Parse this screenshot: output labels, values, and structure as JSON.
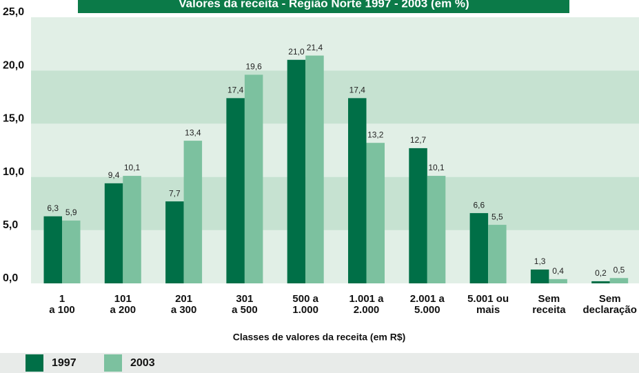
{
  "chart_data": {
    "type": "bar",
    "title": "Valores da receita - Região Norte 1997 - 2003 (em %)",
    "x_label": "Classes de valores da receita (em R$)",
    "categories": [
      [
        "1",
        "a 100"
      ],
      [
        "101",
        "a 200"
      ],
      [
        "201",
        "a 300"
      ],
      [
        "301",
        "a 500"
      ],
      [
        "500 a",
        "1.000"
      ],
      [
        "1.001 a",
        "2.000"
      ],
      [
        "2.001 a",
        "5.000"
      ],
      [
        "5.001 ou",
        "mais"
      ],
      [
        "Sem",
        "receita"
      ],
      [
        "Sem",
        "declaração"
      ]
    ],
    "series": [
      {
        "name": "1997",
        "color": "#006f47",
        "values": [
          6.3,
          9.4,
          7.7,
          17.4,
          21.0,
          17.4,
          12.7,
          6.6,
          1.3,
          0.2
        ],
        "value_labels": [
          "6,3",
          "9,4",
          "7,7",
          "17,4",
          "21,0",
          "17,4",
          "12,7",
          "6,6",
          "1,3",
          "0,2"
        ]
      },
      {
        "name": "2003",
        "color": "#7cc19f",
        "values": [
          5.9,
          10.1,
          13.4,
          19.6,
          21.4,
          13.2,
          10.1,
          5.5,
          0.4,
          0.5
        ],
        "value_labels": [
          "5,9",
          "10,1",
          "13,4",
          "19,6",
          "21,4",
          "13,2",
          "10,1",
          "5,5",
          "0,4",
          "0,5"
        ]
      }
    ],
    "ylim": [
      0,
      25
    ],
    "yticks": [
      {
        "value": 0,
        "label": "0,0"
      },
      {
        "value": 5,
        "label": "5,0"
      },
      {
        "value": 10,
        "label": "10,0"
      },
      {
        "value": 15,
        "label": "15,0"
      },
      {
        "value": 20,
        "label": "20,0"
      },
      {
        "value": 25,
        "label": "25,0"
      }
    ],
    "legend": "bottom-left"
  }
}
